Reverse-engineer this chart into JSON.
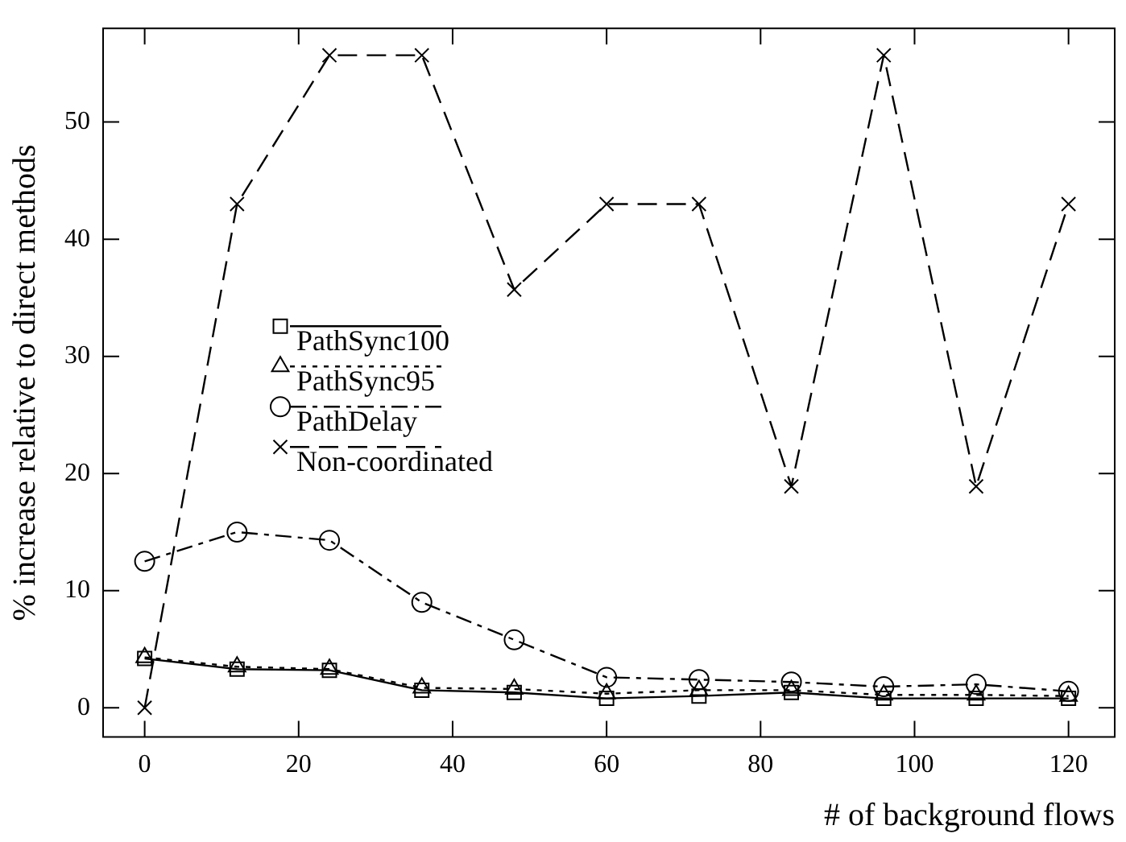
{
  "chart_data": {
    "type": "line",
    "xlabel": "# of background flows",
    "ylabel": "% increase relative to direct methods",
    "x": [
      0,
      12,
      24,
      36,
      48,
      60,
      72,
      84,
      96,
      108,
      120
    ],
    "xlim": [
      -5.4,
      126
    ],
    "xticks": [
      0,
      20,
      40,
      60,
      80,
      100,
      120
    ],
    "ylim": [
      -2.5,
      58
    ],
    "yticks": [
      0,
      10,
      20,
      30,
      40,
      50
    ],
    "grid": false,
    "legend": "left",
    "series": [
      {
        "name": "PathSync100",
        "color": "#000000",
        "marker": "square",
        "line_style": "solid",
        "values": [
          4.2,
          3.3,
          3.2,
          1.5,
          1.3,
          0.8,
          1.0,
          1.3,
          0.8,
          0.8,
          0.8
        ]
      },
      {
        "name": "PathSync95",
        "color": "#000000",
        "marker": "triangle",
        "line_style": "dotted",
        "values": [
          4.3,
          3.5,
          3.3,
          1.7,
          1.6,
          1.2,
          1.5,
          1.5,
          1.1,
          1.1,
          1.0
        ]
      },
      {
        "name": "PathDelay",
        "color": "#000000",
        "marker": "circle",
        "line_style": "dashdot",
        "values": [
          12.5,
          15,
          14.3,
          9,
          5.8,
          2.6,
          2.4,
          2.2,
          1.8,
          2.0,
          1.4
        ]
      },
      {
        "name": "Non-coordinated",
        "color": "#000000",
        "marker": "cross",
        "line_style": "dashed",
        "values": [
          0,
          43,
          55.7,
          55.7,
          35.7,
          43,
          43,
          18.9,
          55.7,
          18.9,
          43
        ]
      }
    ]
  }
}
